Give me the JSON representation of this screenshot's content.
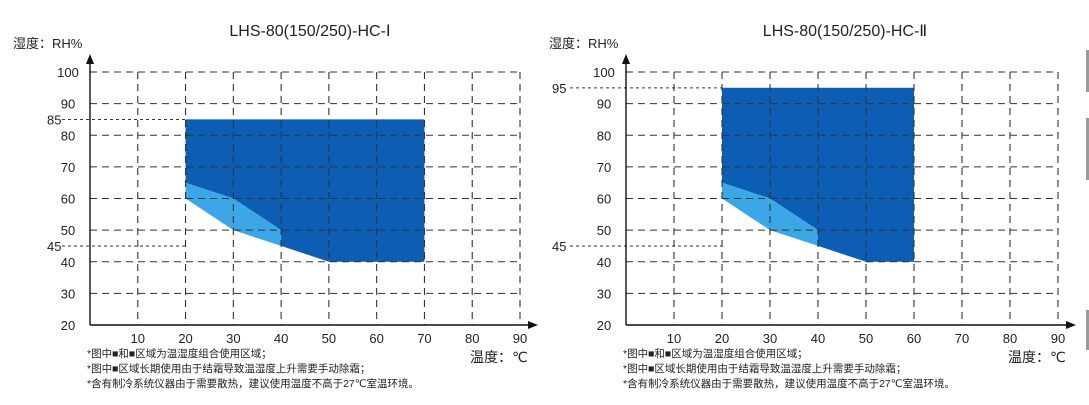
{
  "ui": {
    "palette": {
      "dark": "#0b5eb4",
      "mid": "#3ca7e6",
      "light": "#cfeefb",
      "grid": "#333333",
      "text": "#222222"
    }
  },
  "chart_data": [
    {
      "type": "area",
      "title": "LHS-80(150/250)-HC-Ⅰ",
      "ylabel": "湿度：RH%",
      "xlabel": "温度：℃",
      "xlim": [
        0,
        90
      ],
      "ylim": [
        20,
        100
      ],
      "x_ticks": [
        10,
        20,
        30,
        40,
        50,
        60,
        70,
        80,
        90
      ],
      "y_ticks": [
        20,
        30,
        40,
        50,
        60,
        70,
        80,
        90,
        100
      ],
      "grid": true,
      "marked_levels": [
        85,
        45
      ],
      "regions": [
        {
          "name": "dark",
          "color": "#0b5eb4",
          "points": [
            [
              20,
              85
            ],
            [
              70,
              85
            ],
            [
              70,
              40
            ],
            [
              50,
              40
            ],
            [
              40,
              45
            ],
            [
              40,
              50
            ],
            [
              30,
              60
            ],
            [
              20,
              65
            ]
          ]
        },
        {
          "name": "mid",
          "color": "#3ca7e6",
          "points": [
            [
              20,
              65
            ],
            [
              30,
              60
            ],
            [
              40,
              50
            ],
            [
              40,
              45
            ],
            [
              30,
              50
            ],
            [
              20,
              60
            ]
          ]
        },
        {
          "name": "light",
          "color": "#cfeefb",
          "points": [
            [
              20,
              60
            ],
            [
              30,
              50
            ],
            [
              40,
              45
            ],
            [
              30,
              50
            ]
          ]
        }
      ],
      "notes": [
        "*图中■和■区域为温湿度组合使用区域；",
        "*图中■区域长期使用由于结霜导致温湿度上升需要手动除霜；",
        "*含有制冷系统仪器由于需要散热，建议使用温度不高于27℃室温环境。"
      ]
    },
    {
      "type": "area",
      "title": "LHS-80(150/250)-HC-Ⅱ",
      "ylabel": "湿度：RH%",
      "xlabel": "温度：℃",
      "xlim": [
        0,
        90
      ],
      "ylim": [
        20,
        100
      ],
      "x_ticks": [
        10,
        20,
        30,
        40,
        50,
        60,
        70,
        80,
        90
      ],
      "y_ticks": [
        20,
        30,
        40,
        50,
        60,
        70,
        80,
        90,
        100
      ],
      "grid": true,
      "marked_levels": [
        95,
        45
      ],
      "regions": [
        {
          "name": "dark",
          "color": "#0b5eb4",
          "points": [
            [
              20,
              95
            ],
            [
              60,
              95
            ],
            [
              60,
              40
            ],
            [
              50,
              40
            ],
            [
              40,
              45
            ],
            [
              40,
              50
            ],
            [
              30,
              60
            ],
            [
              20,
              65
            ]
          ]
        },
        {
          "name": "mid",
          "color": "#3ca7e6",
          "points": [
            [
              20,
              65
            ],
            [
              30,
              60
            ],
            [
              40,
              50
            ],
            [
              40,
              45
            ],
            [
              30,
              50
            ],
            [
              20,
              60
            ]
          ]
        },
        {
          "name": "light",
          "color": "#cfeefb",
          "points": [
            [
              20,
              60
            ],
            [
              30,
              50
            ],
            [
              40,
              45
            ],
            [
              30,
              50
            ]
          ]
        }
      ],
      "notes": [
        "*图中■和■区域为温湿度组合使用区域；",
        "*图中■区域长期使用由于结霜导致温湿度上升需要手动除霜；",
        "*含有制冷系统仪器由于需要散热，建议使用温度不高于27℃室温环境。"
      ]
    }
  ]
}
